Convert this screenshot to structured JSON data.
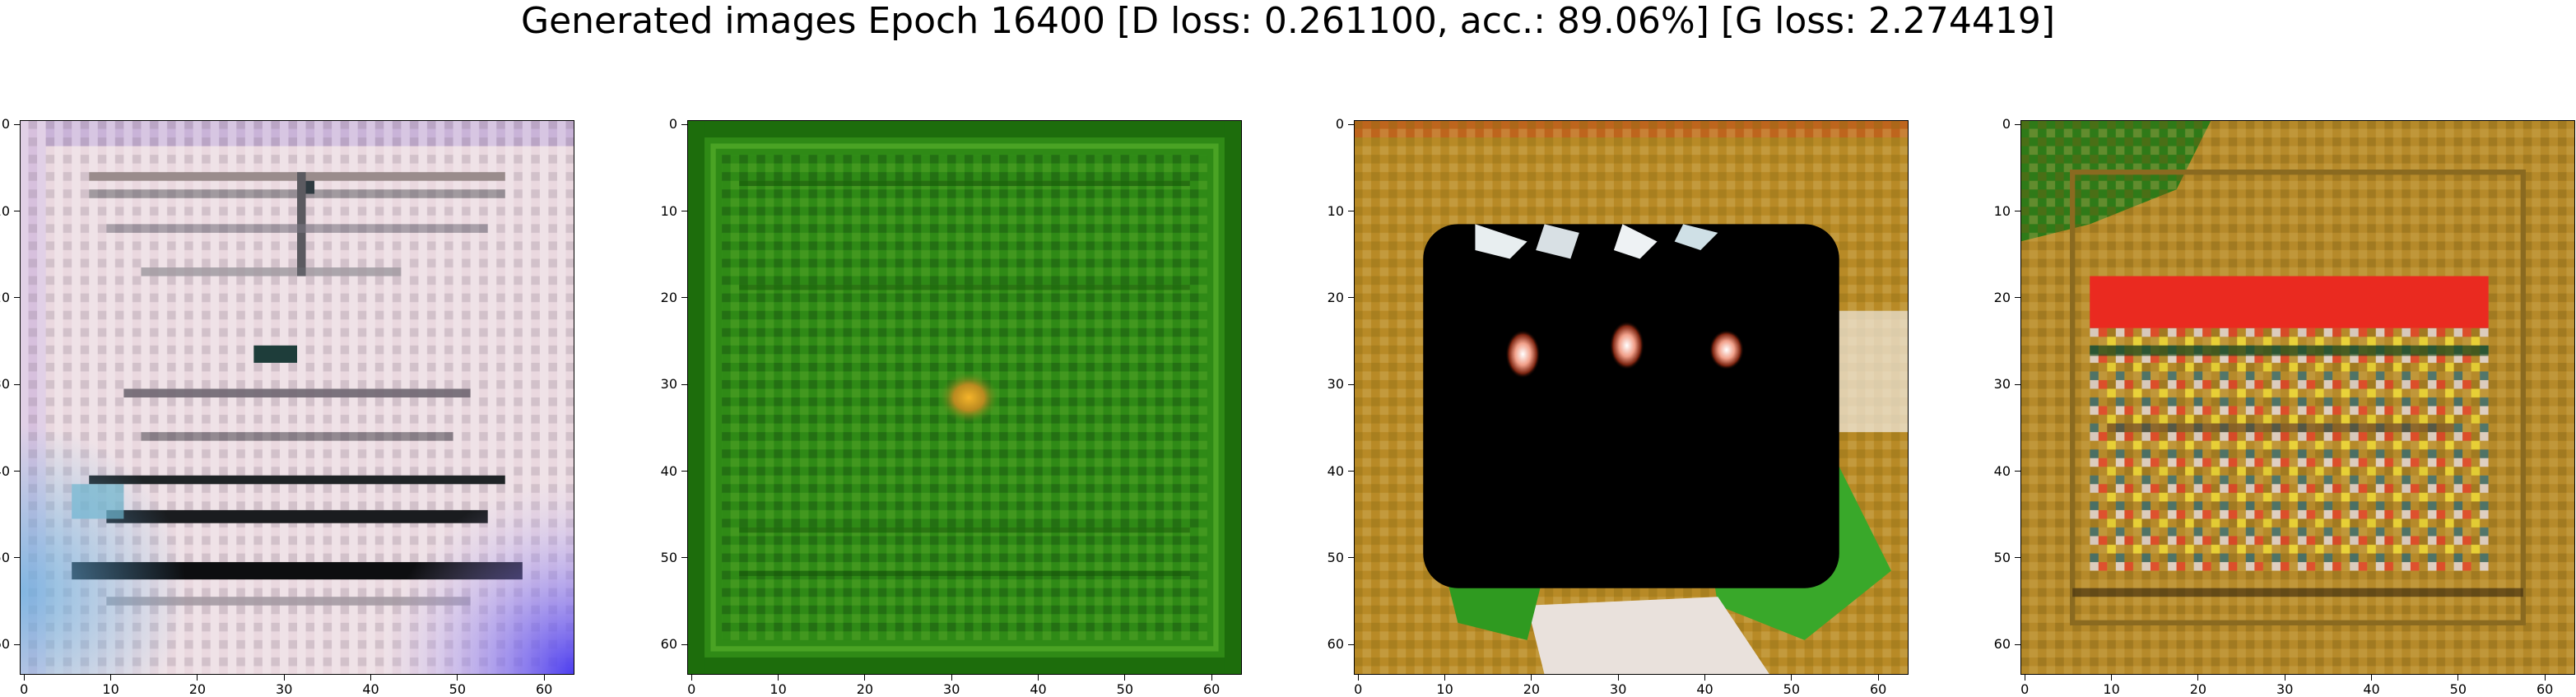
{
  "title": "Generated images Epoch 16400 [D loss: 0.261100, acc.: 89.06%] [G loss: 2.274419]",
  "axis_ticks": [
    "0",
    "10",
    "20",
    "30",
    "40",
    "50",
    "60"
  ],
  "panels": [
    {
      "name": "generated-image-1",
      "description": "pale pink/white noisy texture with dark horizontal streaks and blue-violet corners"
    },
    {
      "name": "generated-image-2",
      "description": "green textured square with a small orange-yellow blob at the center"
    },
    {
      "name": "generated-image-3",
      "description": "black rectangle with three white-red blobs on an ochre background with green patches"
    },
    {
      "name": "generated-image-4",
      "description": "ochre background with a red-orange band and speckled colorful pattern"
    }
  ]
}
